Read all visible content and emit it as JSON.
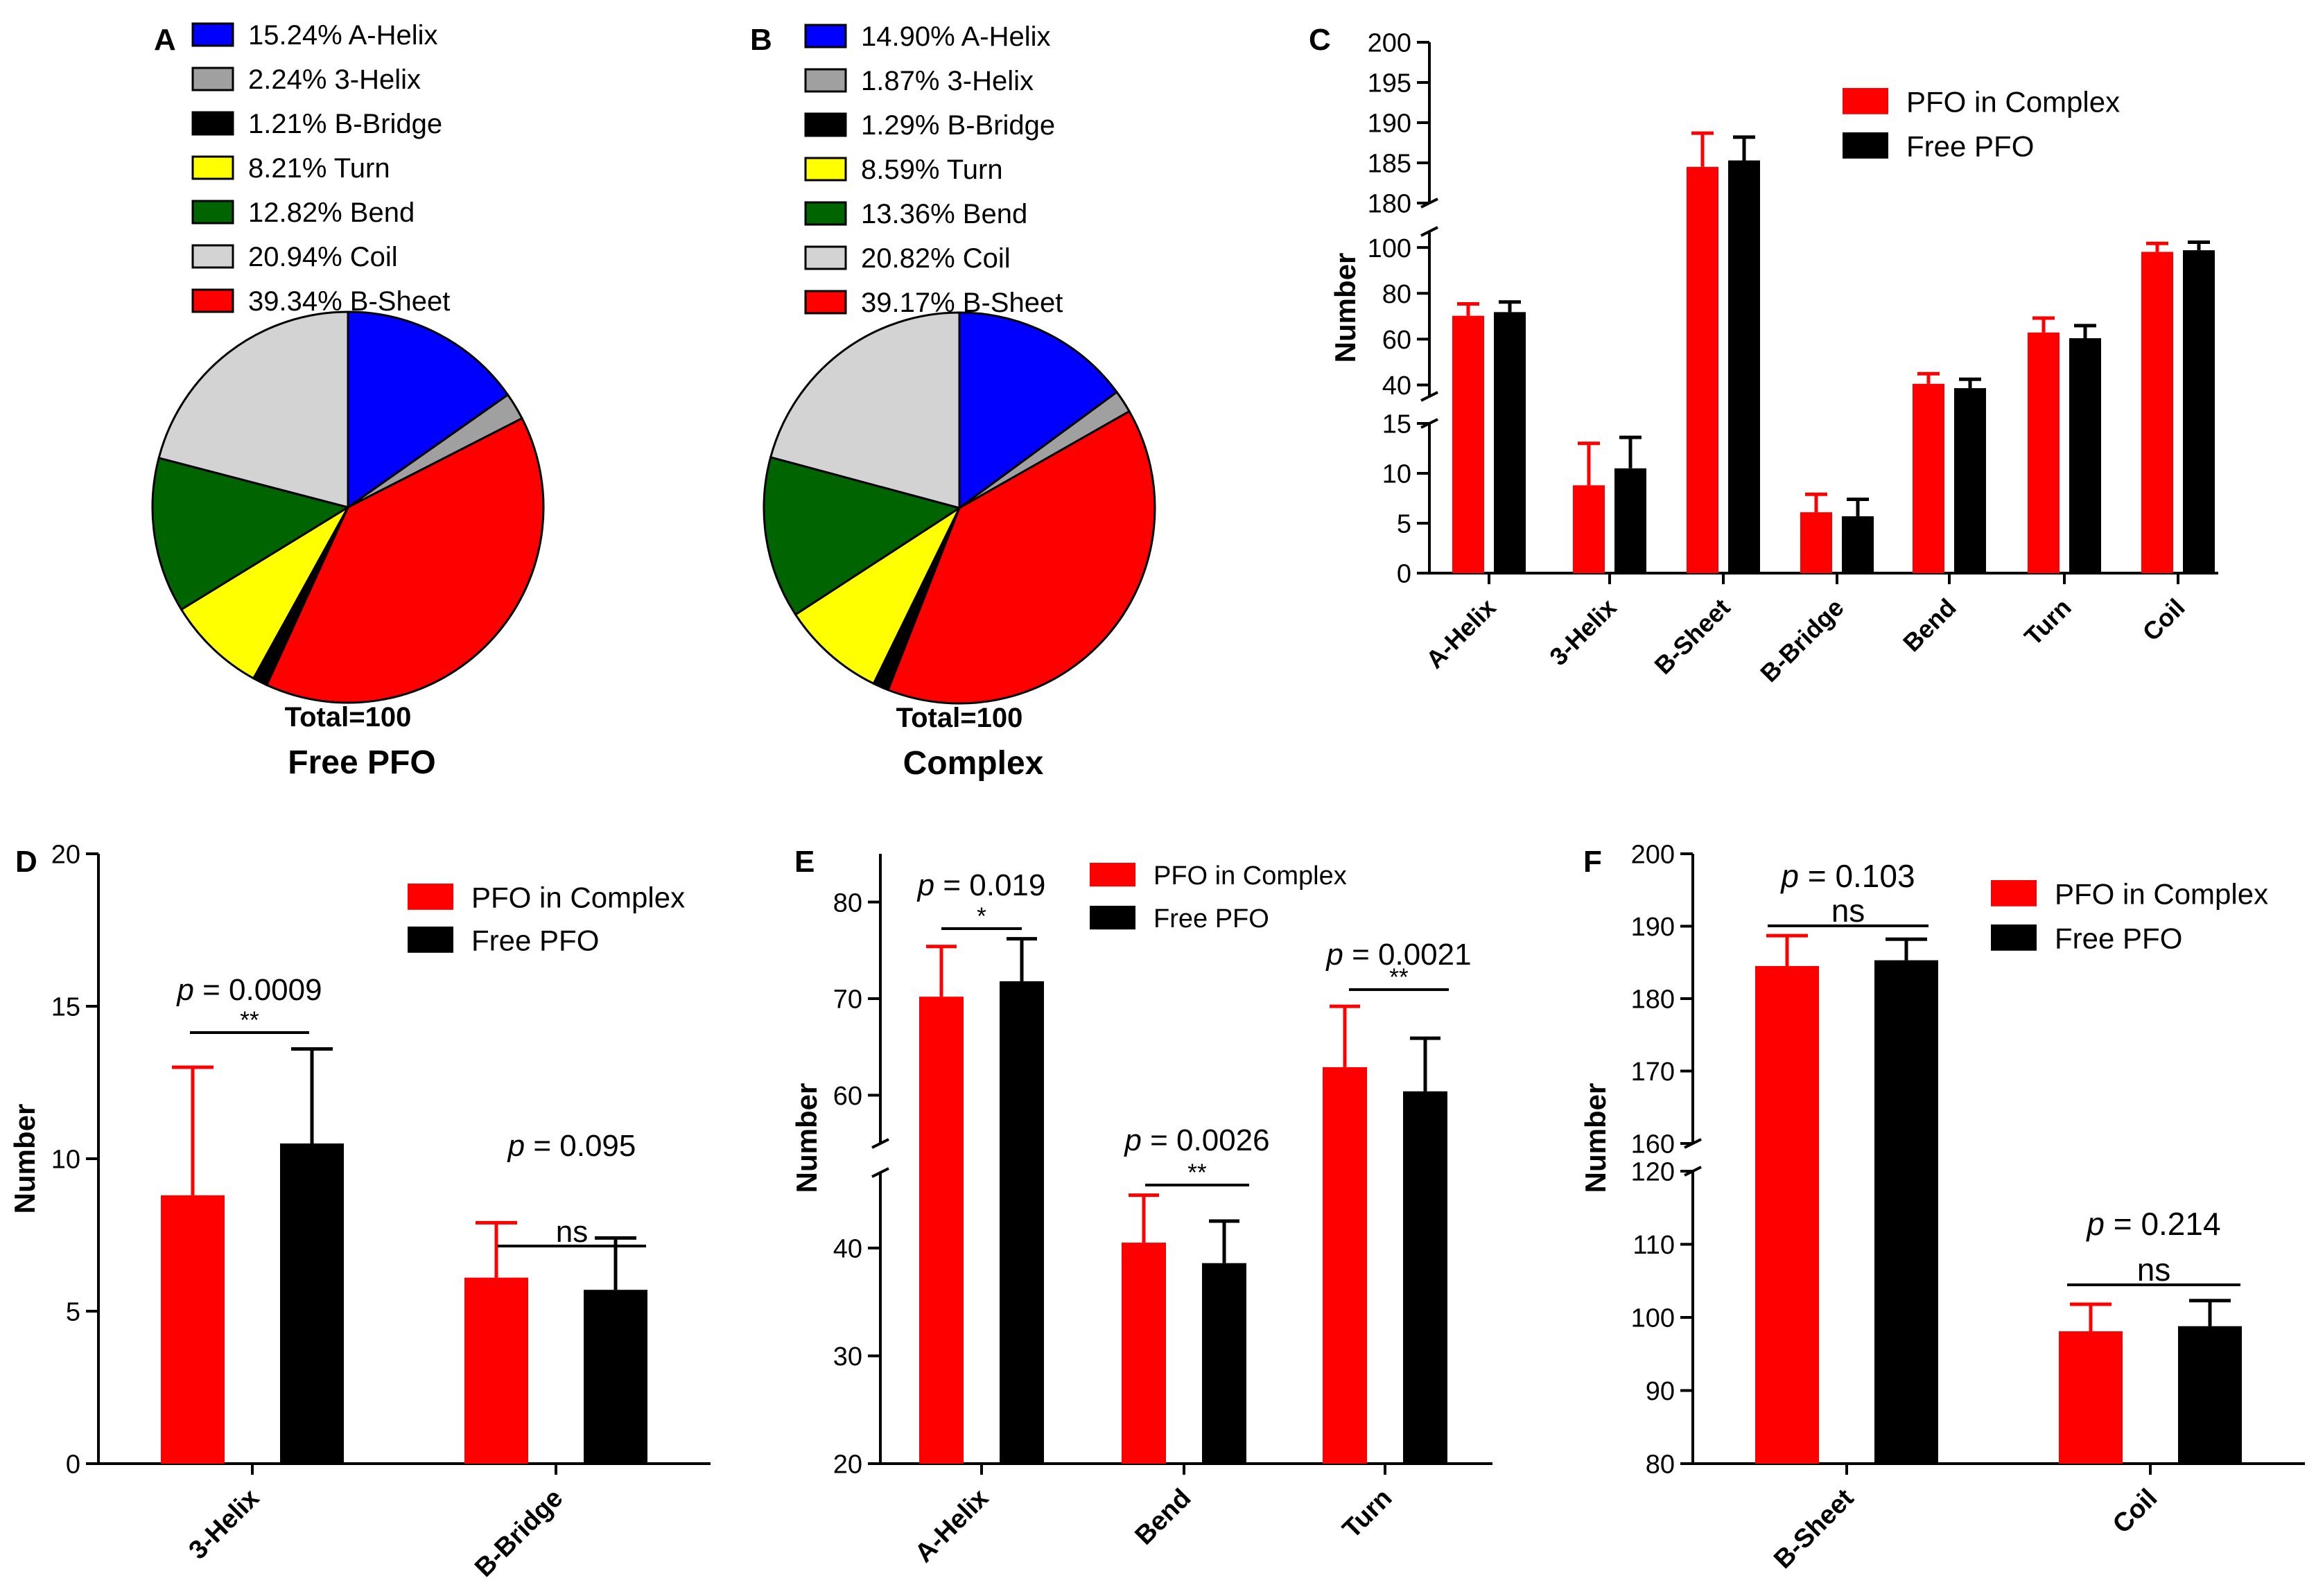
{
  "colors": {
    "A-Helix": "#0000ff",
    "3-Helix": "#a0a0a0",
    "B-Bridge": "#000000",
    "Turn": "#ffff00",
    "Bend": "#006400",
    "Coil": "#d3d3d3",
    "B-Sheet": "#ff0000",
    "complex": "#ff0000",
    "free": "#000000"
  },
  "chart_data": [
    {
      "panel": "A",
      "type": "pie",
      "title": "Free PFO",
      "total_label": "Total=100",
      "slices": [
        {
          "label": "A-Helix",
          "value": 15.24,
          "text": "15.24%"
        },
        {
          "label": "3-Helix",
          "value": 2.24,
          "text": "2.24%"
        },
        {
          "label": "B-Sheet",
          "value": 39.34,
          "text": "39.34%"
        },
        {
          "label": "B-Bridge",
          "value": 1.21,
          "text": "1.21%"
        },
        {
          "label": "Turn",
          "value": 8.21,
          "text": "8.21%"
        },
        {
          "label": "Bend",
          "value": 12.82,
          "text": "12.82%"
        },
        {
          "label": "Coil",
          "value": 20.94,
          "text": "20.94%"
        }
      ],
      "legend_order": [
        "A-Helix",
        "3-Helix",
        "B-Bridge",
        "Turn",
        "Bend",
        "Coil",
        "B-Sheet"
      ]
    },
    {
      "panel": "B",
      "type": "pie",
      "title": "Complex",
      "total_label": "Total=100",
      "slices": [
        {
          "label": "A-Helix",
          "value": 14.9,
          "text": "14.90%"
        },
        {
          "label": "3-Helix",
          "value": 1.87,
          "text": "1.87%"
        },
        {
          "label": "B-Sheet",
          "value": 39.17,
          "text": "39.17%"
        },
        {
          "label": "B-Bridge",
          "value": 1.29,
          "text": "1.29%"
        },
        {
          "label": "Turn",
          "value": 8.59,
          "text": "8.59%"
        },
        {
          "label": "Bend",
          "value": 13.36,
          "text": "13.36%"
        },
        {
          "label": "Coil",
          "value": 20.82,
          "text": "20.82%"
        }
      ],
      "legend_order": [
        "A-Helix",
        "3-Helix",
        "B-Bridge",
        "Turn",
        "Bend",
        "Coil",
        "B-Sheet"
      ]
    },
    {
      "panel": "C",
      "type": "bar",
      "ylabel": "Number",
      "categories": [
        "A-Helix",
        "3-Helix",
        "B-Sheet",
        "B-Bridge",
        "Bend",
        "Turn",
        "Coil"
      ],
      "series": [
        {
          "name": "PFO in Complex",
          "values": [
            70.2,
            8.8,
            184.5,
            6.1,
            40.5,
            62.9,
            98.1
          ],
          "errors": [
            5.2,
            4.2,
            4.2,
            1.8,
            4.4,
            6.3,
            3.7
          ]
        },
        {
          "name": "Free PFO",
          "values": [
            71.8,
            10.5,
            185.3,
            5.7,
            38.6,
            60.4,
            98.8
          ],
          "errors": [
            4.4,
            3.1,
            2.9,
            1.7,
            3.9,
            5.5,
            3.5
          ]
        }
      ],
      "y_segments": [
        {
          "range": [
            0,
            15
          ],
          "ticks": [
            "0",
            "5",
            "10",
            "15"
          ]
        },
        {
          "range": [
            35,
            107
          ],
          "ticks": [
            "40",
            "60",
            "80",
            "100"
          ]
        },
        {
          "range": [
            180,
            200
          ],
          "ticks": [
            "180",
            "185",
            "190",
            "195",
            "200"
          ]
        }
      ]
    },
    {
      "panel": "D",
      "type": "bar",
      "ylabel": "Number",
      "categories": [
        "3-Helix",
        "B-Bridge"
      ],
      "series": [
        {
          "name": "PFO in Complex",
          "values": [
            8.8,
            6.1
          ],
          "errors": [
            4.2,
            1.8
          ]
        },
        {
          "name": "Free PFO",
          "values": [
            10.5,
            5.7
          ],
          "errors": [
            3.1,
            1.7
          ]
        }
      ],
      "ylim": [
        0,
        20
      ],
      "y_ticks": [
        "0",
        "5",
        "10",
        "15",
        "20"
      ],
      "annotations": [
        {
          "p": "= 0.0009",
          "sig": "**"
        },
        {
          "p": "= 0.095",
          "sig": "ns"
        }
      ]
    },
    {
      "panel": "E",
      "type": "bar",
      "ylabel": "Number",
      "categories": [
        "A-Helix",
        "Bend",
        "Turn"
      ],
      "series": [
        {
          "name": "PFO in Complex",
          "values": [
            70.2,
            40.5,
            62.9
          ],
          "errors": [
            5.2,
            4.4,
            6.3
          ]
        },
        {
          "name": "Free PFO",
          "values": [
            71.8,
            38.6,
            60.4
          ],
          "errors": [
            4.4,
            3.9,
            5.5
          ]
        }
      ],
      "y_segments": [
        {
          "range": [
            20,
            47
          ],
          "ticks": [
            "20",
            "30",
            "40"
          ]
        },
        {
          "range": [
            55,
            85
          ],
          "ticks": [
            "60",
            "70",
            "80"
          ]
        }
      ],
      "annotations": [
        {
          "p": "= 0.019",
          "sig": "*"
        },
        {
          "p": "= 0.0026",
          "sig": "**"
        },
        {
          "p": "= 0.0021",
          "sig": "**"
        }
      ]
    },
    {
      "panel": "F",
      "type": "bar",
      "ylabel": "Number",
      "categories": [
        "B-Sheet",
        "Coil"
      ],
      "series": [
        {
          "name": "PFO in Complex",
          "values": [
            184.5,
            98.1
          ],
          "errors": [
            4.2,
            3.7
          ]
        },
        {
          "name": "Free PFO",
          "values": [
            185.3,
            98.8
          ],
          "errors": [
            2.9,
            3.5
          ]
        }
      ],
      "y_segments": [
        {
          "range": [
            80,
            120
          ],
          "ticks": [
            "80",
            "90",
            "100",
            "110",
            "120"
          ]
        },
        {
          "range": [
            160,
            200
          ],
          "ticks": [
            "160",
            "170",
            "180",
            "190",
            "200"
          ]
        }
      ],
      "annotations": [
        {
          "p": "= 0.103",
          "sig": "ns"
        },
        {
          "p": "= 0.214",
          "sig": "ns"
        }
      ]
    }
  ]
}
